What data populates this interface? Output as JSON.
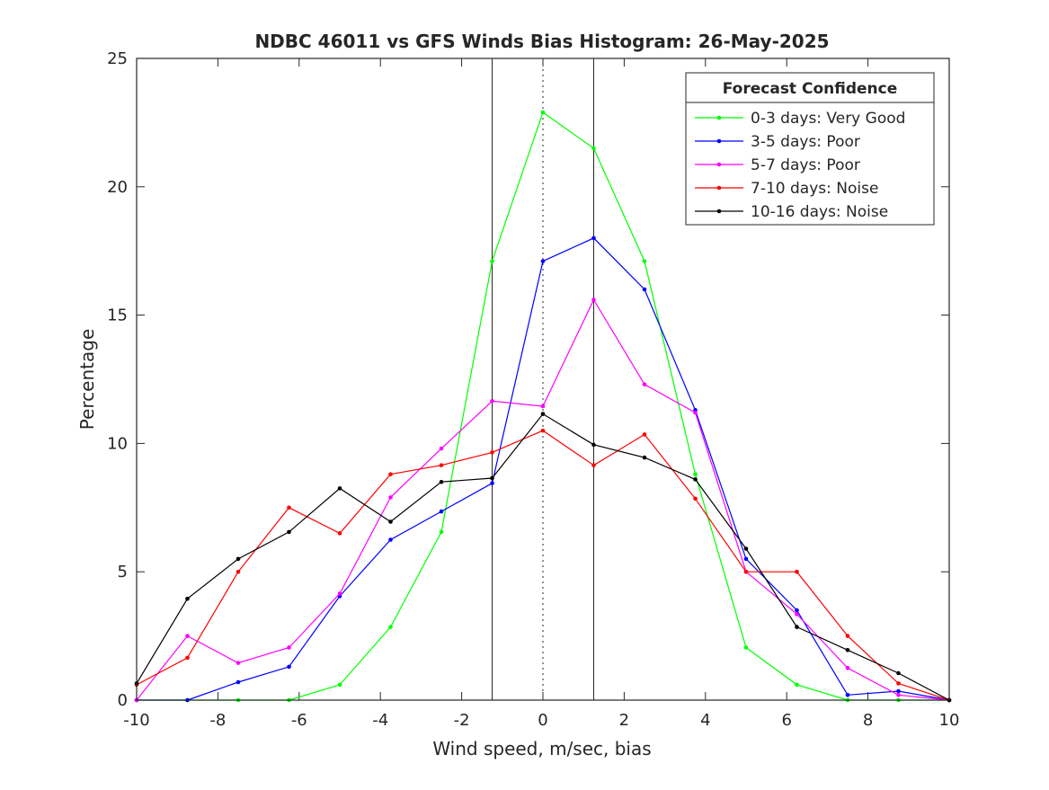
{
  "chart_data": {
    "type": "line",
    "title": "NDBC 46011 vs GFS Winds Bias Histogram: 26-May-2025",
    "xlabel": "Wind speed, m/sec, bias",
    "ylabel": "Percentage",
    "xlim": [
      -10,
      10
    ],
    "ylim": [
      0,
      25
    ],
    "xticks": [
      -10,
      -8,
      -6,
      -4,
      -2,
      0,
      2,
      4,
      6,
      8,
      10
    ],
    "yticks": [
      0,
      5,
      10,
      15,
      20,
      25
    ],
    "legend": {
      "title": "Forecast Confidence",
      "placement": "top-right"
    },
    "vertical_lines": [
      {
        "x": -1.25,
        "style": "solid"
      },
      {
        "x": 0,
        "style": "dotted"
      },
      {
        "x": 1.25,
        "style": "solid"
      }
    ],
    "x": [
      -10,
      -8.75,
      -7.5,
      -6.25,
      -5,
      -3.75,
      -2.5,
      -1.25,
      0,
      1.25,
      2.5,
      3.75,
      5,
      6.25,
      7.5,
      8.75,
      10
    ],
    "series": [
      {
        "name": "0-3 days: Very Good",
        "color": "#00ff00",
        "values": [
          0,
          0,
          0,
          0,
          0.6,
          2.85,
          6.55,
          17.1,
          22.9,
          21.5,
          17.1,
          8.8,
          2.05,
          0.6,
          0,
          0,
          0
        ]
      },
      {
        "name": "3-5 days: Poor",
        "color": "#0000ff",
        "values": [
          0,
          0,
          0.7,
          1.3,
          4.05,
          6.25,
          7.35,
          8.45,
          17.1,
          18.0,
          16.0,
          11.3,
          5.5,
          3.5,
          0.2,
          0.35,
          0
        ]
      },
      {
        "name": "5-7 days: Poor",
        "color": "#ff00ff",
        "values": [
          0,
          2.5,
          1.45,
          2.05,
          4.15,
          7.9,
          9.8,
          11.65,
          11.45,
          15.6,
          12.3,
          11.2,
          5.0,
          3.35,
          1.25,
          0.2,
          0
        ]
      },
      {
        "name": "7-10 days: Noise",
        "color": "#ff0000",
        "values": [
          0.6,
          1.65,
          5.0,
          7.5,
          6.5,
          8.8,
          9.15,
          9.65,
          10.5,
          9.15,
          10.35,
          7.85,
          5.0,
          5.0,
          2.5,
          0.65,
          0
        ]
      },
      {
        "name": "10-16 days: Noise",
        "color": "#000000",
        "values": [
          0.65,
          3.95,
          5.5,
          6.55,
          8.25,
          6.95,
          8.5,
          8.65,
          11.15,
          9.95,
          9.45,
          8.6,
          5.9,
          2.85,
          1.95,
          1.05,
          0
        ]
      }
    ]
  }
}
